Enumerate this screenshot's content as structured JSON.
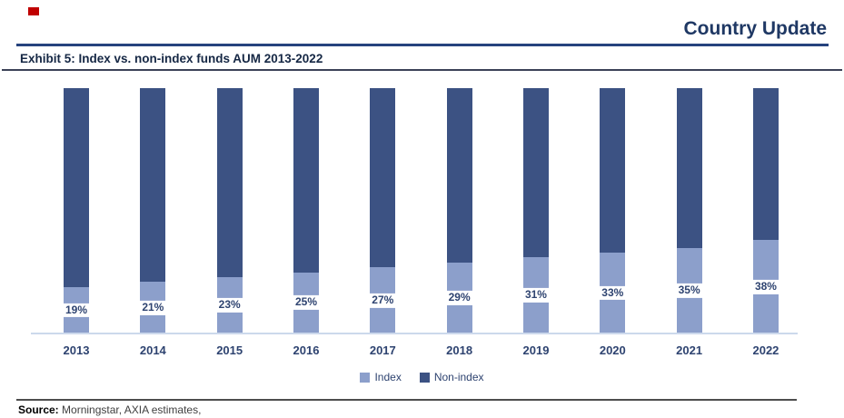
{
  "header": {
    "title": "Country Update"
  },
  "exhibit": {
    "title": "Exhibit 5: Index vs. non-index funds AUM 2013-2022"
  },
  "source": {
    "label": "Source:",
    "text": " Morningstar, AXIA estimates,"
  },
  "colors": {
    "accent_navy": "#1f3864",
    "bar_dark": "#3c5283",
    "bar_light": "#8c9fcb",
    "axis_line": "#ccd9ec",
    "label_text": "#2e4370",
    "red_mark": "#c00000"
  },
  "chart_data": {
    "type": "bar",
    "stacked": true,
    "stack_total": 100,
    "title": "Exhibit 5: Index vs. non-index funds AUM 2013-2022",
    "categories": [
      "2013",
      "2014",
      "2015",
      "2016",
      "2017",
      "2018",
      "2019",
      "2020",
      "2021",
      "2022"
    ],
    "series": [
      {
        "name": "Index",
        "color": "#8c9fcb",
        "values": [
          19,
          21,
          23,
          25,
          27,
          29,
          31,
          33,
          35,
          38
        ],
        "labels": [
          "19%",
          "21%",
          "23%",
          "25%",
          "27%",
          "29%",
          "31%",
          "33%",
          "35%",
          "38%"
        ]
      },
      {
        "name": "Non-index",
        "color": "#3c5283",
        "values": [
          81,
          79,
          77,
          75,
          73,
          71,
          69,
          67,
          65,
          62
        ],
        "labels": []
      }
    ],
    "xlabel": "",
    "ylabel": "",
    "ylim": [
      0,
      100
    ],
    "grid": false,
    "y_axis_ticks_visible": false,
    "legend_position": "bottom-center",
    "data_labels_note": "Index series percentage shown in white box centered inside light segment"
  }
}
